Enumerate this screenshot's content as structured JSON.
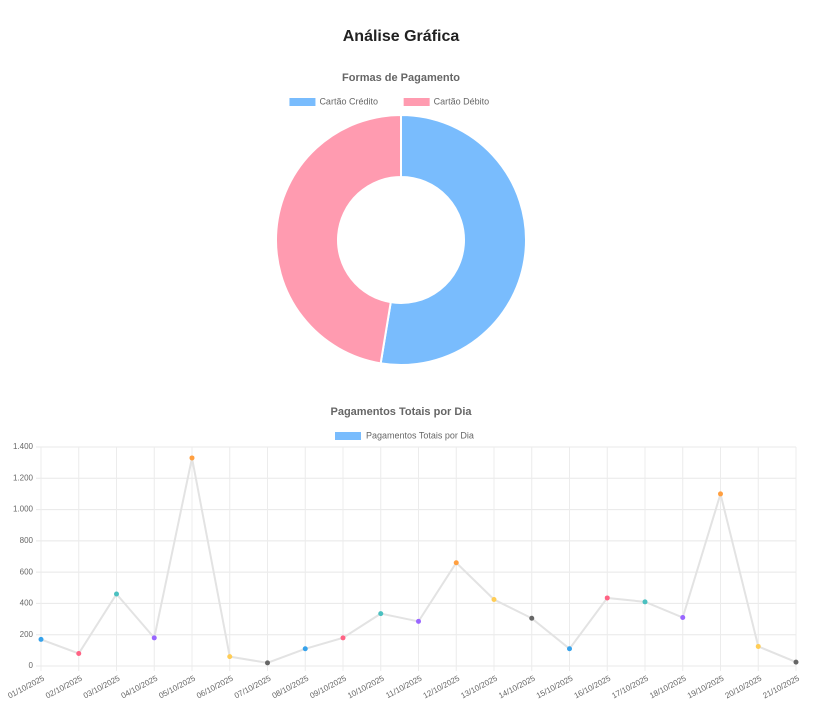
{
  "page_title": "Análise Gráfica",
  "chart_data": [
    {
      "type": "doughnut",
      "title": "Formas de Pagamento",
      "categories": [
        "Cartão Crédito",
        "Cartão Débito"
      ],
      "values": [
        52.6,
        47.4
      ],
      "colors": [
        "#79bcfd",
        "#ff9bb0"
      ]
    },
    {
      "type": "line",
      "title": "Pagamentos Totais por Dia",
      "categories": [
        "01/10/2025",
        "02/10/2025",
        "03/10/2025",
        "04/10/2025",
        "05/10/2025",
        "06/10/2025",
        "07/10/2025",
        "08/10/2025",
        "09/10/2025",
        "10/10/2025",
        "11/10/2025",
        "12/10/2025",
        "13/10/2025",
        "14/10/2025",
        "15/10/2025",
        "16/10/2025",
        "17/10/2025",
        "18/10/2025",
        "19/10/2025",
        "20/10/2025",
        "21/10/2025"
      ],
      "series": [
        {
          "name": "Pagamentos Totais por Dia",
          "color": "#79bcfd",
          "values": [
            170,
            80,
            460,
            180,
            1330,
            60,
            20,
            110,
            180,
            335,
            285,
            660,
            425,
            305,
            110,
            435,
            410,
            310,
            1100,
            125,
            25
          ]
        }
      ],
      "line_color": "#e3e3e3",
      "point_colors": [
        "#36a2eb",
        "#ff6384",
        "#4bc0c0",
        "#9966ff",
        "#ff9f40",
        "#ffcd56",
        "#666666"
      ],
      "ylim": [
        0,
        1400
      ],
      "yticks": [
        0,
        200,
        400,
        600,
        800,
        {
          "value": 1000,
          "label": "1.000"
        },
        {
          "value": 1200,
          "label": "1.200"
        },
        {
          "value": 1400,
          "label": "1.400"
        }
      ],
      "grid": true
    }
  ]
}
